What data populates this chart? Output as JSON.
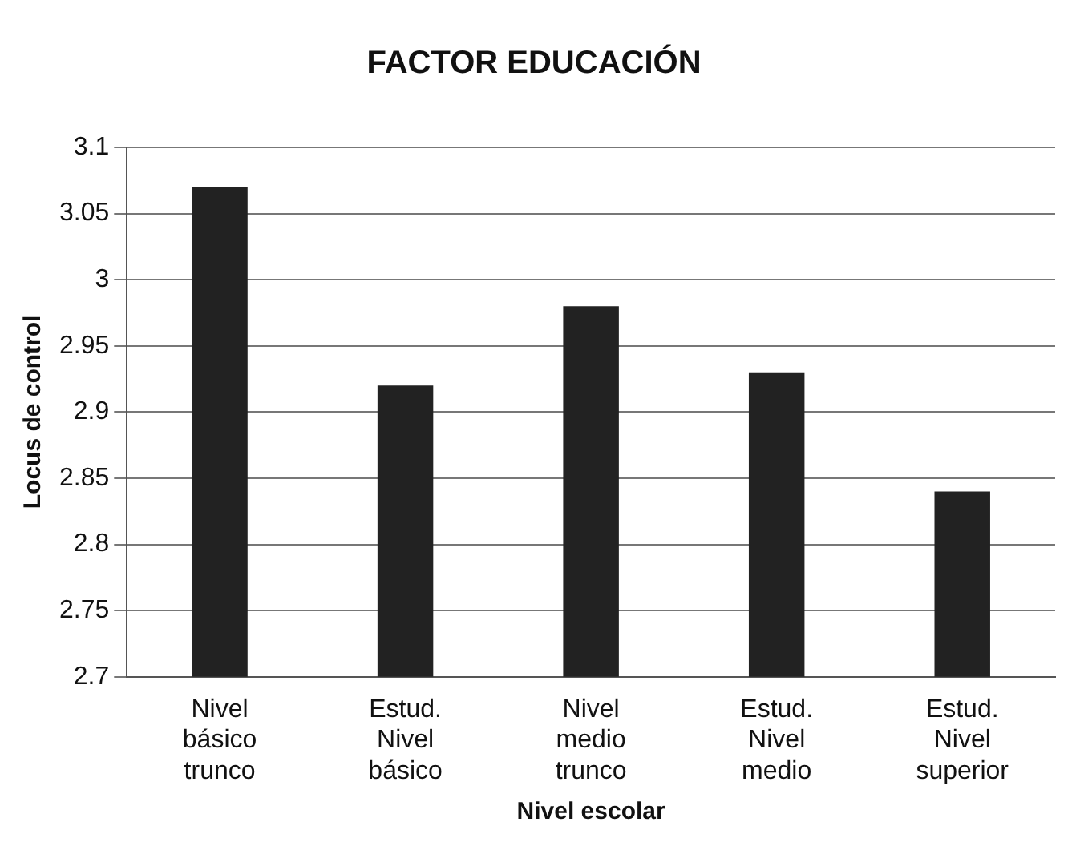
{
  "chart_data": {
    "type": "bar",
    "title": "FACTOR EDUCACIÓN",
    "xlabel": "Nivel escolar",
    "ylabel": "Locus de control",
    "categories": [
      "Nivel básico trunco",
      "Estud. Nivel básico",
      "Nivel medio trunco",
      "Estud. Nivel medio",
      "Estud. Nivel superior"
    ],
    "values": [
      3.07,
      2.92,
      2.98,
      2.93,
      2.84
    ],
    "color": "#222222",
    "ylim": [
      2.7,
      3.1
    ],
    "yticks": [
      2.7,
      2.75,
      2.8,
      2.85,
      2.9,
      2.95,
      3,
      3.05,
      3.1
    ],
    "grid": "y",
    "legend": false
  }
}
